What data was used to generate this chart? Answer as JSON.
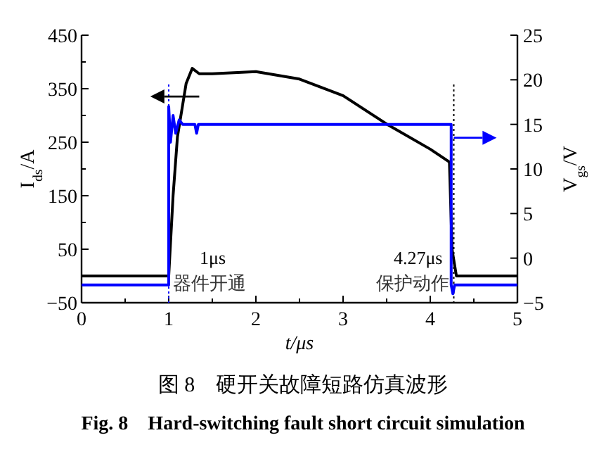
{
  "chart_data": {
    "type": "line",
    "title": "图 8　硬开关故障短路仿真波形",
    "subtitle": "Fig. 8　Hard-switching fault short circuit simulation",
    "xlabel": "t/μs",
    "ylabel": "I$_{ds}$/A",
    "y2label": "V$_{gs}$/V",
    "xlim": [
      0,
      5
    ],
    "ylim": [
      -50,
      450
    ],
    "y2lim": [
      -5,
      25
    ],
    "xticks": [
      0,
      {
        "value": 0.5,
        "label": null
      },
      1,
      {
        "value": 1.5,
        "label": null
      },
      2,
      {
        "value": 2.5,
        "label": null
      },
      3,
      {
        "value": 3.5,
        "label": null
      },
      4,
      {
        "value": 4.5,
        "label": null
      },
      5
    ],
    "yticks": [
      {
        "value": -50,
        "label": "−50"
      },
      {
        "value": 0,
        "label": null
      },
      50,
      {
        "value": 100,
        "label": null
      },
      150,
      {
        "value": 200,
        "label": null
      },
      250,
      {
        "value": 300,
        "label": null
      },
      350,
      {
        "value": 400,
        "label": null
      },
      450
    ],
    "y2ticks": [
      {
        "value": -5,
        "label": "−5"
      },
      0,
      5,
      10,
      15,
      20,
      25
    ],
    "series": [
      {
        "color": "#000000",
        "x": [
          0,
          1,
          1.05,
          1.1,
          1.2,
          1.27,
          1.35,
          1.5,
          2,
          2.5,
          3,
          3.5,
          4,
          4.22,
          4.25,
          4.3,
          5
        ],
        "values": [
          0,
          0,
          150,
          260,
          360,
          388,
          378,
          378,
          382,
          368,
          337,
          284,
          237,
          213,
          50,
          0,
          0
        ]
      },
      {
        "color": "#0000ff",
        "axis": "y2",
        "x": [
          0,
          1,
          1,
          1.02,
          1.05,
          1.08,
          1.12,
          1.16,
          1.3,
          1.32,
          1.34,
          4.24,
          4.24,
          4.26,
          4.28,
          5
        ],
        "values": [
          -3,
          -3,
          17,
          13,
          16,
          14,
          15.5,
          15,
          15,
          14,
          15,
          15,
          -3,
          -4,
          -3,
          -3
        ]
      }
    ],
    "ref_lines": [
      {
        "axis": "x",
        "value": 1,
        "label": "1μs",
        "color": "#0000ff",
        "line_style": "dotted"
      },
      {
        "axis": "x",
        "value": 4.27,
        "label": "4.27μs",
        "color": "#000000",
        "line_style": "dotted"
      }
    ],
    "annotations": [
      {
        "text": "器件开通",
        "x": 1,
        "y": -15
      },
      {
        "text": "保护动作",
        "x": 4.27,
        "y": -15
      }
    ],
    "grid": false,
    "line_style": "solid",
    "marker": "none"
  }
}
